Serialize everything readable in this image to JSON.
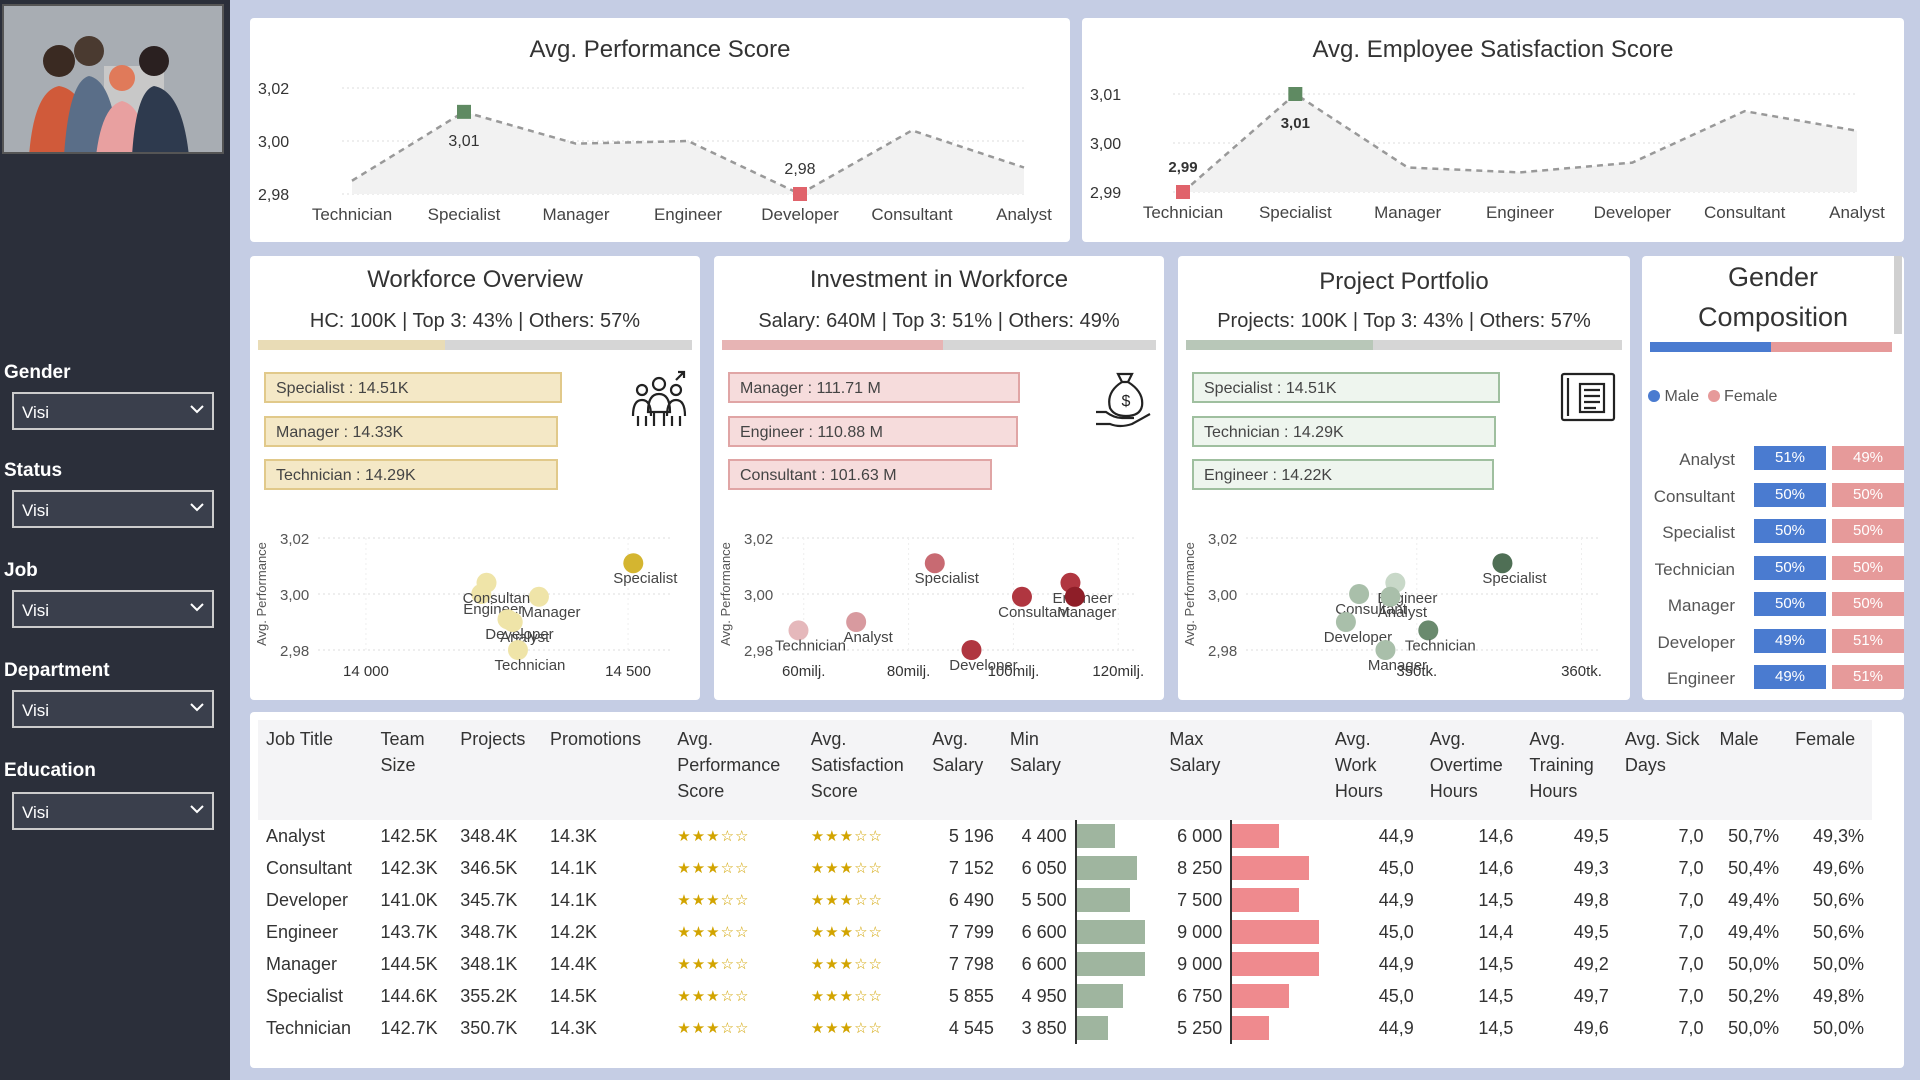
{
  "slicers": [
    {
      "label": "Gender",
      "value": "Visi"
    },
    {
      "label": "Status",
      "value": "Visi"
    },
    {
      "label": "Job",
      "value": "Visi"
    },
    {
      "label": "Department",
      "value": "Visi"
    },
    {
      "label": "Education",
      "value": "Visi"
    }
  ],
  "perf_chart": {
    "title": "Avg. Performance Score",
    "yticks": [
      "3,02",
      "3,00",
      "2,98"
    ],
    "categories": [
      "Technician",
      "Specialist",
      "Manager",
      "Engineer",
      "Developer",
      "Consultant",
      "Analyst"
    ],
    "values": [
      2.985,
      3.011,
      2.999,
      3.0,
      2.98,
      3.004,
      2.99
    ],
    "max_label": "3,01",
    "min_label": "2,98"
  },
  "sat_chart": {
    "title": "Avg. Employee Satisfaction Score",
    "yticks": [
      "3,01",
      "3,00",
      "2,99"
    ],
    "categories": [
      "Technician",
      "Specialist",
      "Manager",
      "Engineer",
      "Developer",
      "Consultant",
      "Analyst"
    ],
    "values": [
      2.99,
      3.01,
      2.995,
      2.994,
      2.996,
      3.0065,
      3.0025
    ],
    "max_label": "3,01",
    "min_label": "2,99"
  },
  "workforce": {
    "title": "Workforce Overview",
    "subtitle": "HC: 100K | Top 3: 43% | Others: 57%",
    "top_share": 43,
    "items": [
      "Specialist : 14.51K",
      "Manager : 14.33K",
      "Technician : 14.29K"
    ],
    "icon": "team-icon",
    "scatter_xticks": [
      "14 000",
      "14 500"
    ],
    "scatter_yticks": [
      "3,02",
      "3,00",
      "2,98"
    ],
    "ylabel": "Avg. Performance",
    "points": [
      {
        "label": "Specialist",
        "x": 14510,
        "y": 3.011
      },
      {
        "label": "Engineer",
        "x": 14220,
        "y": 3.0
      },
      {
        "label": "Consultant",
        "x": 14230,
        "y": 3.004
      },
      {
        "label": "Manager",
        "x": 14330,
        "y": 2.999
      },
      {
        "label": "Developer",
        "x": 14270,
        "y": 2.991
      },
      {
        "label": "Analyst",
        "x": 14280,
        "y": 2.99
      },
      {
        "label": "Technician",
        "x": 14290,
        "y": 2.98
      }
    ]
  },
  "investment": {
    "title": "Investment in Workforce",
    "subtitle": "Salary: 640M | Top 3: 51% | Others: 49%",
    "top_share": 51,
    "items": [
      "Manager : 111.71 M",
      "Engineer : 110.88 M",
      "Consultant : 101.63 M"
    ],
    "icon": "money-bag-icon",
    "scatter_xticks": [
      "60milj.",
      "80milj.",
      "100milj.",
      "120milj."
    ],
    "scatter_yticks": [
      "3,02",
      "3,00",
      "2,98"
    ],
    "ylabel": "Avg. Performance",
    "points": [
      {
        "label": "Specialist",
        "x": 85,
        "y": 3.011
      },
      {
        "label": "Engineer",
        "x": 110.88,
        "y": 3.004
      },
      {
        "label": "Consultant",
        "x": 101.63,
        "y": 2.999
      },
      {
        "label": "Manager",
        "x": 111.71,
        "y": 2.999
      },
      {
        "label": "Analyst",
        "x": 70,
        "y": 2.99
      },
      {
        "label": "Technician",
        "x": 59,
        "y": 2.987
      },
      {
        "label": "Developer",
        "x": 92,
        "y": 2.98
      }
    ]
  },
  "portfolio": {
    "title": "Project Portfolio",
    "subtitle": "Projects: 100K | Top 3: 43% | Others: 57%",
    "top_share": 43,
    "items": [
      "Specialist : 14.51K",
      "Technician : 14.29K",
      "Engineer : 14.22K"
    ],
    "icon": "document-icon",
    "scatter_xticks": [
      "350tk.",
      "360tk."
    ],
    "scatter_yticks": [
      "3,02",
      "3,00",
      "2,98"
    ],
    "ylabel": "Avg. Performance",
    "points": [
      {
        "label": "Specialist",
        "x": 355.2,
        "y": 3.011
      },
      {
        "label": "Engineer",
        "x": 348.7,
        "y": 3.004
      },
      {
        "label": "Consultant",
        "x": 346.5,
        "y": 3.0
      },
      {
        "label": "Analyst",
        "x": 348.4,
        "y": 2.999
      },
      {
        "label": "Developer",
        "x": 345.7,
        "y": 2.99
      },
      {
        "label": "Technician",
        "x": 350.7,
        "y": 2.987
      },
      {
        "label": "Manager",
        "x": 348.1,
        "y": 2.98
      }
    ]
  },
  "gender": {
    "title_line1": "Gender",
    "title_line2": "Composition",
    "legend_male": "Male",
    "legend_female": "Female",
    "male_color": "#4a7bd0",
    "female_color": "#e69a9a",
    "male_share": 50,
    "rows": [
      {
        "job": "Analyst",
        "male": "51%",
        "female": "49%"
      },
      {
        "job": "Consultant",
        "male": "50%",
        "female": "50%"
      },
      {
        "job": "Specialist",
        "male": "50%",
        "female": "50%"
      },
      {
        "job": "Technician",
        "male": "50%",
        "female": "50%"
      },
      {
        "job": "Manager",
        "male": "50%",
        "female": "50%"
      },
      {
        "job": "Developer",
        "male": "49%",
        "female": "51%"
      },
      {
        "job": "Engineer",
        "male": "49%",
        "female": "51%"
      }
    ]
  },
  "table": {
    "headers": [
      "Job Title",
      "Team Size",
      "Projects",
      "Promotions",
      "Avg. Performance Score",
      "Avg. Satisfaction Score",
      "Avg. Salary",
      "Min Salary",
      "",
      "Max Salary",
      "",
      "Avg. Work Hours",
      "Avg. Overtime Hours",
      "Avg. Training Hours",
      "Avg. Sick Days",
      "Male",
      "Female"
    ],
    "rows": [
      {
        "job": "Analyst",
        "team": "142.5K",
        "projects": "348.4K",
        "promotions": "14.3K",
        "perf_stars": 3,
        "sat_stars": 3,
        "avg_salary": "5 196",
        "min_salary": "4 400",
        "min_val": 4400,
        "max_salary": "6 000",
        "max_val": 6000,
        "work": "44,9",
        "overtime": "14,6",
        "training": "49,5",
        "sick": "7,0",
        "male": "50,7%",
        "female": "49,3%"
      },
      {
        "job": "Consultant",
        "team": "142.3K",
        "projects": "346.5K",
        "promotions": "14.1K",
        "perf_stars": 3,
        "sat_stars": 3,
        "avg_salary": "7 152",
        "min_salary": "6 050",
        "min_val": 6050,
        "max_salary": "8 250",
        "max_val": 8250,
        "work": "45,0",
        "overtime": "14,6",
        "training": "49,3",
        "sick": "7,0",
        "male": "50,4%",
        "female": "49,6%"
      },
      {
        "job": "Developer",
        "team": "141.0K",
        "projects": "345.7K",
        "promotions": "14.1K",
        "perf_stars": 3,
        "sat_stars": 3,
        "avg_salary": "6 490",
        "min_salary": "5 500",
        "min_val": 5500,
        "max_salary": "7 500",
        "max_val": 7500,
        "work": "44,9",
        "overtime": "14,5",
        "training": "49,8",
        "sick": "7,0",
        "male": "49,4%",
        "female": "50,6%"
      },
      {
        "job": "Engineer",
        "team": "143.7K",
        "projects": "348.7K",
        "promotions": "14.2K",
        "perf_stars": 3,
        "sat_stars": 3,
        "avg_salary": "7 799",
        "min_salary": "6 600",
        "min_val": 6600,
        "max_salary": "9 000",
        "max_val": 9000,
        "work": "45,0",
        "overtime": "14,4",
        "training": "49,5",
        "sick": "7,0",
        "male": "49,4%",
        "female": "50,6%"
      },
      {
        "job": "Manager",
        "team": "144.5K",
        "projects": "348.1K",
        "promotions": "14.4K",
        "perf_stars": 3,
        "sat_stars": 3,
        "avg_salary": "7 798",
        "min_salary": "6 600",
        "min_val": 6600,
        "max_salary": "9 000",
        "max_val": 9000,
        "work": "44,9",
        "overtime": "14,5",
        "training": "49,2",
        "sick": "7,0",
        "male": "50,0%",
        "female": "50,0%"
      },
      {
        "job": "Specialist",
        "team": "144.6K",
        "projects": "355.2K",
        "promotions": "14.5K",
        "perf_stars": 3,
        "sat_stars": 3,
        "avg_salary": "5 855",
        "min_salary": "4 950",
        "min_val": 4950,
        "max_salary": "6 750",
        "max_val": 6750,
        "work": "45,0",
        "overtime": "14,5",
        "training": "49,7",
        "sick": "7,0",
        "male": "50,2%",
        "female": "49,8%"
      },
      {
        "job": "Technician",
        "team": "142.7K",
        "projects": "350.7K",
        "promotions": "14.3K",
        "perf_stars": 3,
        "sat_stars": 3,
        "avg_salary": "4 545",
        "min_salary": "3 850",
        "min_val": 3850,
        "max_salary": "5 250",
        "max_val": 5250,
        "work": "44,9",
        "overtime": "14,5",
        "training": "49,6",
        "sick": "7,0",
        "male": "50,0%",
        "female": "50,0%"
      }
    ]
  },
  "chart_data": [
    {
      "type": "line",
      "title": "Avg. Performance Score",
      "categories": [
        "Technician",
        "Specialist",
        "Manager",
        "Engineer",
        "Developer",
        "Consultant",
        "Analyst"
      ],
      "values": [
        2.985,
        3.011,
        2.999,
        3.0,
        2.98,
        3.004,
        2.99
      ],
      "ylim": [
        2.98,
        3.02
      ]
    },
    {
      "type": "line",
      "title": "Avg. Employee Satisfaction Score",
      "categories": [
        "Technician",
        "Specialist",
        "Manager",
        "Engineer",
        "Developer",
        "Consultant",
        "Analyst"
      ],
      "values": [
        2.99,
        3.01,
        2.995,
        2.994,
        2.996,
        3.0065,
        3.0025
      ],
      "ylim": [
        2.99,
        3.01
      ]
    }
  ]
}
